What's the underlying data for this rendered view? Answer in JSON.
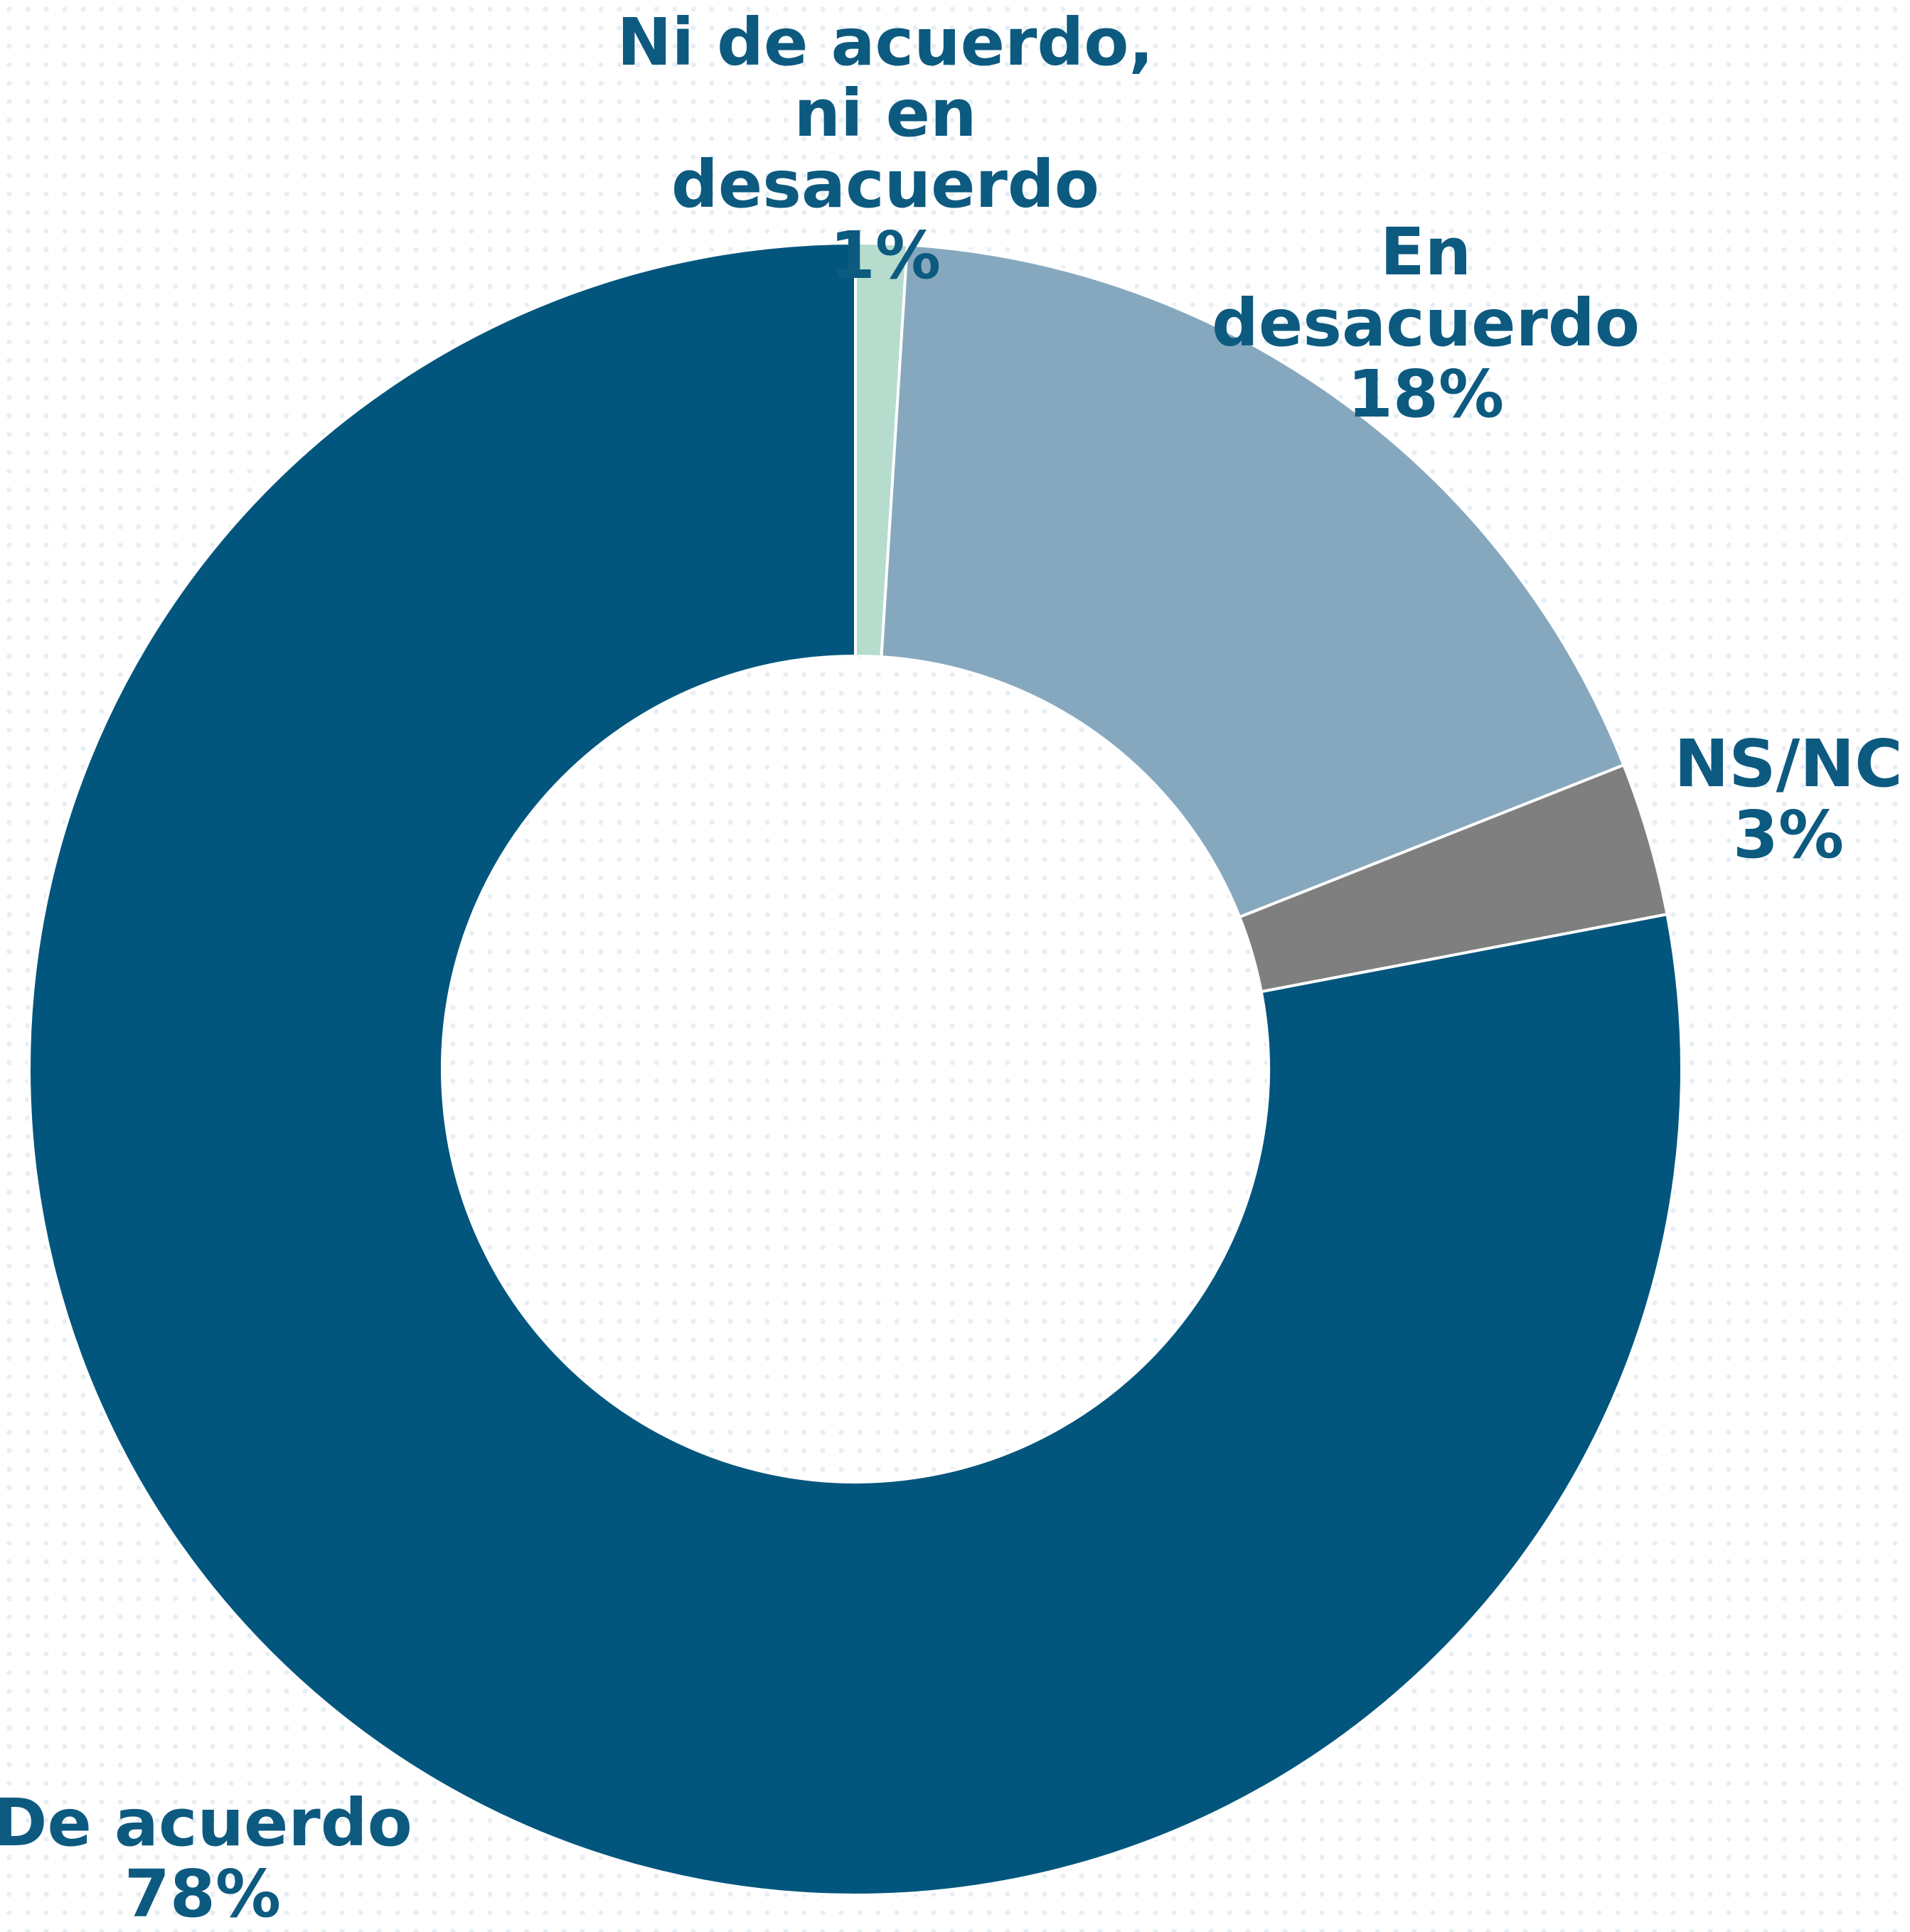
{
  "chart_data": {
    "type": "donut",
    "categories": [
      "Ni de acuerdo, ni en desacuerdo",
      "En desacuerdo",
      "NS/NC",
      "De acuerdo"
    ],
    "values": [
      1,
      18,
      3,
      78
    ],
    "value_labels": [
      "1%",
      "18%",
      "3%",
      "78%"
    ],
    "colors": [
      "#b5dccd",
      "#86a8bf",
      "#7f7f7f",
      "#02567e"
    ]
  }
}
